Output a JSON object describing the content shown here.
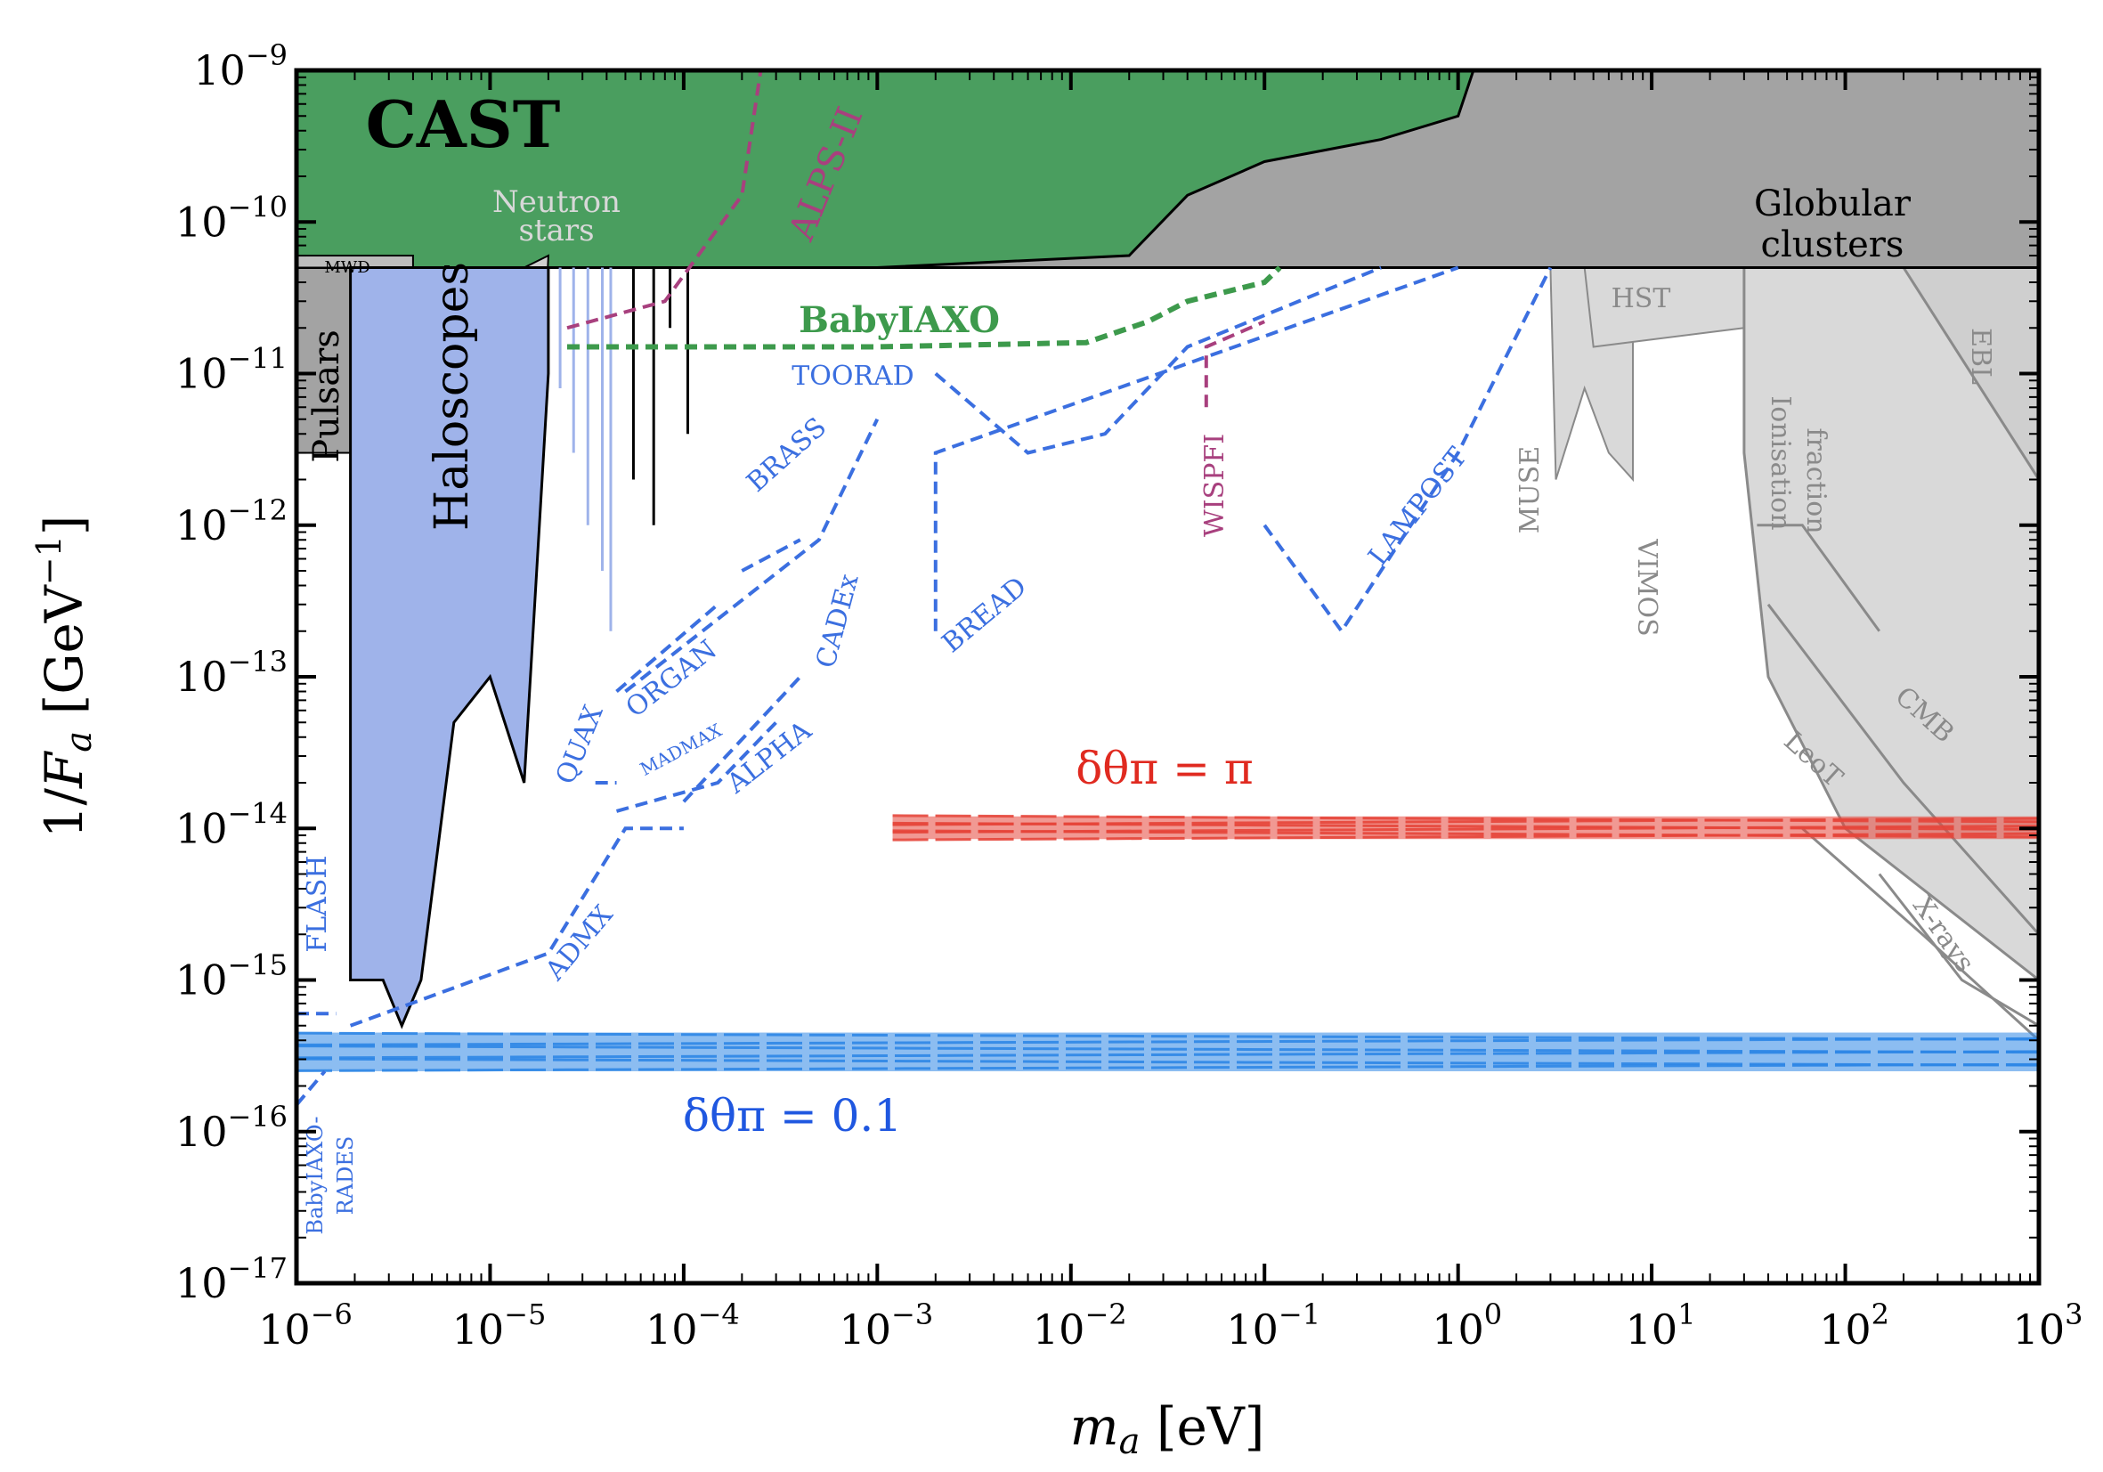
{
  "chart_data": {
    "type": "line",
    "xlabel": "m_a [eV]",
    "ylabel": "1/F_a [GeV^-1]",
    "xscale": "log",
    "yscale": "log",
    "xlim": [
      1e-06,
      1000.0
    ],
    "ylim": [
      1e-17,
      1e-09
    ],
    "x_tick_exponents": [
      -6,
      -5,
      -4,
      -3,
      -2,
      -1,
      0,
      1,
      2,
      3
    ],
    "y_tick_exponents": [
      -17,
      -16,
      -15,
      -14,
      -13,
      -12,
      -11,
      -10,
      -9
    ],
    "x_tick_labels": [
      "10^-6",
      "10^-5",
      "10^-4",
      "10^-3",
      "10^-2",
      "10^-1",
      "10^0",
      "10^1",
      "10^2",
      "10^3"
    ],
    "y_tick_labels": [
      "10^-17",
      "10^-16",
      "10^-15",
      "10^-14",
      "10^-13",
      "10^-12",
      "10^-11",
      "10^-10",
      "10^-9"
    ],
    "grid": false,
    "colors": {
      "cast": "#4a9e5f",
      "globular": "#a3a3a3",
      "astro_light": "#d9d9d9",
      "haloscope": "#9fb3ea",
      "projection_blue": "#3b6fe0",
      "projection_green": "#3d9a4c",
      "projection_magenta": "#a8407e",
      "band_red": "#e6453a",
      "band_blue": "#2e86e6"
    },
    "exclusions": [
      {
        "name": "CAST",
        "color": "#4a9e5f",
        "boundary": [
          [
            1e-06,
            5e-11
          ],
          [
            0.001,
            5e-11
          ],
          [
            0.02,
            6e-11
          ],
          [
            0.04,
            1.5e-10
          ],
          [
            0.1,
            2.5e-10
          ],
          [
            0.4,
            3.5e-10
          ],
          [
            1.0,
            5e-10
          ],
          [
            1.2,
            1e-09
          ]
        ]
      },
      {
        "name": "Globular clusters",
        "color": "#a3a3a3",
        "level": 5e-11
      },
      {
        "name": "Neutron stars"
      },
      {
        "name": "MWD"
      },
      {
        "name": "Pulsars",
        "x_range": [
          1e-06,
          2.9e-06
        ],
        "level": 3e-12
      },
      {
        "name": "Haloscopes",
        "color": "#9fb3ea",
        "boundary": [
          [
            1.9e-06,
            1e-15
          ],
          [
            2.8e-06,
            1e-15
          ],
          [
            3.5e-06,
            5e-16
          ],
          [
            4.4e-06,
            1e-15
          ],
          [
            6.5e-06,
            5e-14
          ],
          [
            1e-05,
            1e-13
          ],
          [
            1.5e-05,
            2e-14
          ],
          [
            2e-05,
            1e-11
          ]
        ]
      },
      {
        "name": "HST"
      },
      {
        "name": "MUSE"
      },
      {
        "name": "VIMOS"
      },
      {
        "name": "Ionisation fraction"
      },
      {
        "name": "EBL"
      },
      {
        "name": "CMB"
      },
      {
        "name": "LeoT"
      },
      {
        "name": "X-rays"
      }
    ],
    "projections": [
      {
        "name": "BabyIAXO",
        "color": "#3d9a4c",
        "points": [
          [
            2.5e-05,
            1.5e-11
          ],
          [
            0.001,
            1.5e-11
          ],
          [
            0.012,
            1.6e-11
          ],
          [
            0.025,
            2.2e-11
          ],
          [
            0.04,
            3e-11
          ],
          [
            0.1,
            4e-11
          ],
          [
            0.12,
            5e-11
          ]
        ]
      },
      {
        "name": "ALPS-II",
        "color": "#a8407e",
        "points": [
          [
            2.5e-05,
            2e-11
          ],
          [
            8e-05,
            3e-11
          ],
          [
            0.0002,
            1.5e-10
          ],
          [
            0.00025,
            1e-09
          ]
        ]
      },
      {
        "name": "WISPFI",
        "color": "#a8407e",
        "points": [
          [
            0.05,
            6e-12
          ],
          [
            0.05,
            1.5e-11
          ],
          [
            0.1,
            2.2e-11
          ]
        ]
      },
      {
        "name": "TOORAD",
        "color": "#3b6fe0",
        "points": [
          [
            0.002,
            1e-11
          ],
          [
            0.006,
            3e-12
          ],
          [
            0.015,
            4e-12
          ],
          [
            0.04,
            1.5e-11
          ],
          [
            0.4,
            5e-11
          ]
        ]
      },
      {
        "name": "BRASS",
        "color": "#3b6fe0",
        "points": [
          [
            5e-05,
            8e-14
          ],
          [
            0.0005,
            8e-13
          ],
          [
            0.001,
            5e-12
          ]
        ]
      },
      {
        "name": "CADEx",
        "color": "#3b6fe0",
        "points": [
          [
            0.0002,
            5e-13
          ],
          [
            0.0004,
            8e-13
          ]
        ]
      },
      {
        "name": "BREAD",
        "color": "#3b6fe0",
        "points": [
          [
            0.002,
            2e-13
          ],
          [
            0.002,
            3e-12
          ],
          [
            1.0,
            5e-11
          ]
        ]
      },
      {
        "name": "QUAX",
        "color": "#3b6fe0",
        "points": [
          [
            3.5e-05,
            2e-14
          ],
          [
            4.5e-05,
            2e-14
          ]
        ]
      },
      {
        "name": "ORGAN",
        "color": "#3b6fe0",
        "points": [
          [
            4.5e-05,
            8e-14
          ],
          [
            0.00015,
            3e-13
          ]
        ]
      },
      {
        "name": "MADMAX",
        "color": "#3b6fe0",
        "points": [
          [
            4.5e-05,
            1.3e-14
          ],
          [
            0.00015,
            2e-14
          ],
          [
            0.0003,
            5e-14
          ]
        ]
      },
      {
        "name": "ALPHA",
        "color": "#3b6fe0",
        "points": [
          [
            0.0001,
            1.5e-14
          ],
          [
            0.0004,
            1e-13
          ]
        ]
      },
      {
        "name": "ADMX",
        "color": "#3b6fe0",
        "points": [
          [
            1.9e-06,
            5e-16
          ],
          [
            2e-05,
            1.5e-15
          ],
          [
            5e-05,
            1e-14
          ],
          [
            0.0001,
            1e-14
          ]
        ]
      },
      {
        "name": "FLASH",
        "color": "#3b6fe0",
        "points": [
          [
            1e-06,
            6e-16
          ],
          [
            1.6e-06,
            6e-16
          ]
        ]
      },
      {
        "name": "LAMPOST",
        "color": "#3b6fe0",
        "points": [
          [
            0.1,
            1e-12
          ],
          [
            0.25,
            2e-13
          ],
          [
            1.0,
            3e-12
          ],
          [
            3.0,
            5e-11
          ]
        ]
      },
      {
        "name": "BabyIAXO-RADES",
        "color": "#3b6fe0",
        "points": [
          [
            1e-06,
            1.5e-16
          ],
          [
            1.4e-06,
            2.5e-16
          ]
        ]
      }
    ],
    "bands": [
      {
        "name": "δθ_π = π",
        "color": "#e6453a",
        "x_range": [
          0.0012,
          1000
        ],
        "y_range": [
          8.5e-15,
          1.2e-14
        ]
      },
      {
        "name": "δθ_π = 0.1",
        "color": "#2e86e6",
        "x_range": [
          1e-06,
          1000
        ],
        "y_range": [
          2.5e-16,
          4.5e-16
        ]
      }
    ],
    "labels": {
      "cast": "CAST",
      "neutron": "Neutron",
      "stars": "stars",
      "mwd": "MWD",
      "pulsars": "Pulsars",
      "haloscopes": "Haloscopes",
      "globular1": "Globular",
      "globular2": "clusters",
      "babyiaxo": "BabyIAXO",
      "alps": "ALPS-II",
      "toorad": "TOORAD",
      "brass": "BRASS",
      "cadex": "CADEx",
      "bread": "BREAD",
      "quax": "QUAX",
      "organ": "ORGAN",
      "madmax": "MADMAX",
      "alpha": "ALPHA",
      "admx": "ADMX",
      "flash": "FLASH",
      "wispfi": "WISPFI",
      "lampost": "LAMPOST",
      "hst": "HST",
      "muse": "MUSE",
      "vimos": "VIMOS",
      "ionisation1": "Ionisation",
      "ionisation2": "fraction",
      "ebl": "EBL",
      "cmb": "CMB",
      "leot": "LeoT",
      "xrays": "X-rays",
      "rades1": "BabyIAXO-",
      "rades2": "RADES",
      "band_pi": "δθπ = π",
      "band_01": "δθπ = 0.1"
    }
  }
}
